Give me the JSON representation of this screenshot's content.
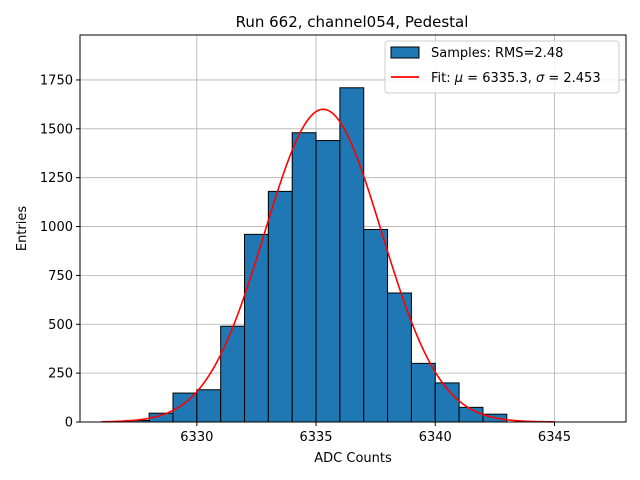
{
  "chart_data": {
    "type": "bar",
    "title": "Run 662, channel054, Pedestal",
    "xlabel": "ADC Counts",
    "ylabel": "Entries",
    "xlim": [
      6325.1,
      6348.0
    ],
    "ylim": [
      0,
      1980
    ],
    "grid": true,
    "legend_placement": "top-right",
    "xticks": [
      6330,
      6335,
      6340,
      6345
    ],
    "yticks": [
      0,
      250,
      500,
      750,
      1000,
      1250,
      1500,
      1750
    ],
    "bar_color": "#1f77b4",
    "bar_edge_color": "#000000",
    "fit_color": "#ff0000",
    "bins": {
      "edges": [
        6327,
        6328,
        6329,
        6330,
        6331,
        6332,
        6333,
        6334,
        6335,
        6336,
        6337,
        6338,
        6339,
        6340,
        6341,
        6342,
        6343
      ],
      "values": [
        8,
        45,
        148,
        165,
        490,
        960,
        1180,
        1480,
        1440,
        1710,
        985,
        660,
        300,
        200,
        75,
        40
      ]
    },
    "fit": {
      "mu": 6335.3,
      "sigma": 2.453,
      "amplitude": 1600,
      "x_range": [
        6326,
        6345
      ]
    },
    "legend": {
      "hist_label": "Samples: RMS=2.48",
      "fit_label_prefix": "Fit: ",
      "fit_mu_symbol": "μ",
      "fit_mu_text": " = 6335.3, ",
      "fit_sigma_symbol": "σ",
      "fit_sigma_text": " = 2.453"
    }
  }
}
